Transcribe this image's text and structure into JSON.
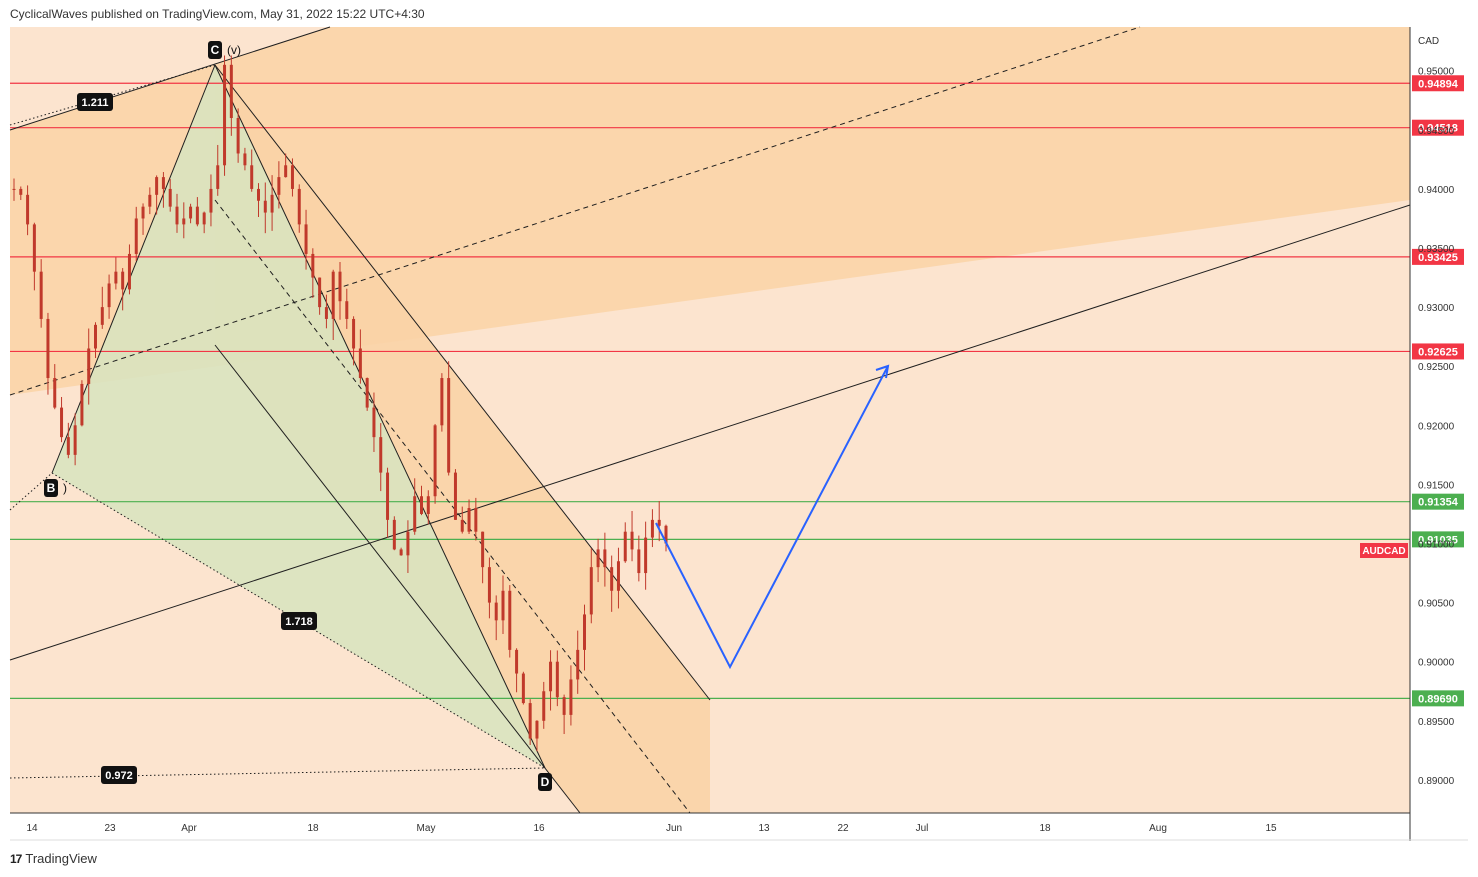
{
  "header": {
    "text": "CyclicalWaves published on TradingView.com, May 31, 2022 15:22 UTC+4:30"
  },
  "footer": {
    "brand": "TradingView",
    "logo_glyph": "17"
  },
  "colors": {
    "background_zone": "#fce4cf",
    "orange_zone": "#fad3a6",
    "green_zone": "#d9e3bf",
    "resistance": "#f23645",
    "support": "#4caf50",
    "projection": "#2962ff",
    "candle": "#c0392b",
    "trendline": "#1f1f1f"
  },
  "chart_data": {
    "type": "candlestick",
    "symbol_label": "AUDCAD",
    "currency": "CAD",
    "x_ticks": [
      "14",
      "23",
      "Apr",
      "18",
      "May",
      "16",
      "Jun",
      "13",
      "22",
      "Jul",
      "18",
      "Aug",
      "15"
    ],
    "y_ticks": [
      "0.95000",
      "0.94500",
      "0.94000",
      "0.93500",
      "0.93000",
      "0.92500",
      "0.92000",
      "0.91500",
      "0.91000",
      "0.90500",
      "0.90000",
      "0.89500",
      "0.89000"
    ],
    "ylim": [
      0.8872,
      0.9537
    ],
    "horizontal_levels": [
      {
        "value": 0.94894,
        "label": "0.94894",
        "kind": "resistance"
      },
      {
        "value": 0.94518,
        "label": "0.94518",
        "kind": "resistance"
      },
      {
        "value": 0.93425,
        "label": "0.93425",
        "kind": "resistance"
      },
      {
        "value": 0.92625,
        "label": "0.92625",
        "kind": "resistance"
      },
      {
        "value": 0.91354,
        "label": "0.91354",
        "kind": "support"
      },
      {
        "value": 0.91035,
        "label": "0.91035",
        "kind": "support"
      },
      {
        "value": 0.8969,
        "label": "0.89690",
        "kind": "support"
      }
    ],
    "pattern_points": [
      {
        "label": "C",
        "sub": "(v)",
        "price": 0.9522
      },
      {
        "label": "B",
        "sub": ")",
        "price": 0.917
      },
      {
        "label": "D",
        "sub": "",
        "price": 0.8922
      }
    ],
    "ratio_labels": [
      "1.211",
      "1.718",
      "0.972"
    ],
    "price_tag": "AUDCAD",
    "projection_path_prices": [
      0.913,
      0.901,
      0.9262
    ],
    "ohlc_series": [
      0.94,
      0.9395,
      0.937,
      0.933,
      0.929,
      0.924,
      0.9215,
      0.919,
      0.9175,
      0.92,
      0.9235,
      0.9265,
      0.9285,
      0.93,
      0.932,
      0.933,
      0.9315,
      0.9345,
      0.9375,
      0.9385,
      0.9395,
      0.941,
      0.94,
      0.9385,
      0.937,
      0.9375,
      0.9385,
      0.937,
      0.938,
      0.94,
      0.942,
      0.9505,
      0.946,
      0.943,
      0.942,
      0.94,
      0.939,
      0.938,
      0.9395,
      0.941,
      0.942,
      0.94,
      0.937,
      0.9345,
      0.9325,
      0.93,
      0.929,
      0.933,
      0.9305,
      0.929,
      0.9265,
      0.924,
      0.9215,
      0.919,
      0.916,
      0.912,
      0.9095,
      0.909,
      0.911,
      0.914,
      0.9125,
      0.914,
      0.92,
      0.924,
      0.916,
      0.912,
      0.911,
      0.913,
      0.911,
      0.908,
      0.905,
      0.9035,
      0.906,
      0.901,
      0.899,
      0.8965,
      0.8935,
      0.895,
      0.8975,
      0.9,
      0.897,
      0.8955,
      0.8985,
      0.901,
      0.904,
      0.908,
      0.9095,
      0.908,
      0.906,
      0.9085,
      0.911,
      0.9095,
      0.9075,
      0.9105,
      0.912,
      0.9115,
      0.91
    ]
  }
}
